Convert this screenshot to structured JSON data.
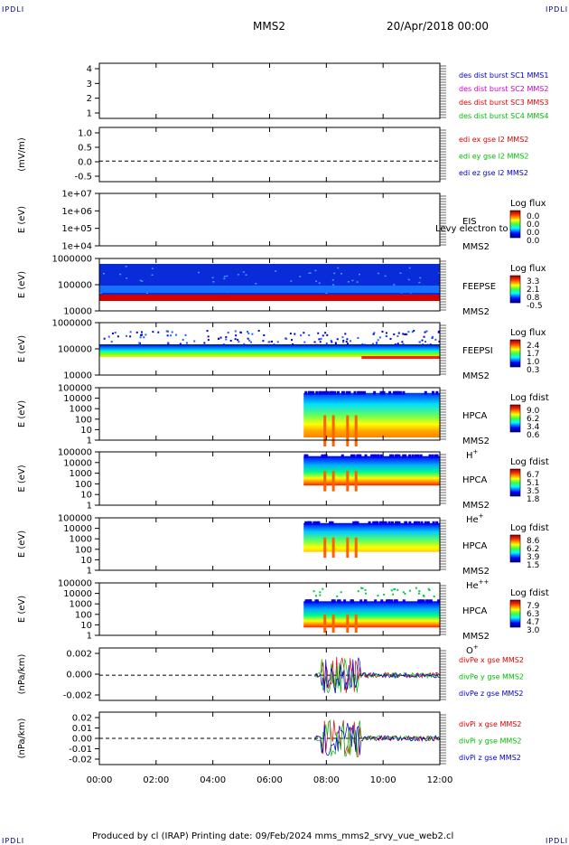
{
  "header": {
    "corner_label": "IPDLI",
    "spacecraft": "MMS2",
    "date_time": "20/Apr/2018 00:00"
  },
  "footer": {
    "text": "Produced by cl (IRAP)   Printing date: 09/Feb/2024   mms_mms2_srvy_vue_web2.cl"
  },
  "colors": {
    "blue": "#0000cc",
    "magenta": "#cc00cc",
    "red": "#dd0000",
    "green": "#00bb00"
  },
  "chart_data": {
    "type": "stacked-panels",
    "x_ticks": [
      "00:00",
      "02:00",
      "04:00",
      "06:00",
      "08:00",
      "10:00",
      "12:00"
    ],
    "xlim_hours": [
      0,
      12
    ],
    "panels": [
      {
        "id": "p1",
        "ylabel": "",
        "yticks": [
          "4",
          "3",
          "2",
          "1"
        ],
        "legend": [
          {
            "text": "des dist burst SC1 MMS1",
            "color": "#0000cc"
          },
          {
            "text": "des dist burst SC2 MMS2",
            "color": "#cc00cc"
          },
          {
            "text": "des dist burst SC3 MMS3",
            "color": "#dd0000"
          },
          {
            "text": "des dist burst SC4 MMS4",
            "color": "#00bb00"
          }
        ]
      },
      {
        "id": "p2",
        "ylabel": "(mV/m)",
        "yticks": [
          "1.0",
          "0.5",
          "0.0",
          "-0.5"
        ],
        "legend": [
          {
            "text": "edi ex gse l2 MMS2",
            "color": "#dd0000"
          },
          {
            "text": "edi ey gse l2 MMS2",
            "color": "#00bb00"
          },
          {
            "text": "edi ez gse l2 MMS2",
            "color": "#0000cc"
          }
        ]
      },
      {
        "id": "p3",
        "ylabel": "E (eV)",
        "yticks": [
          "1e+07",
          "1e+06",
          "1e+05",
          "1e+04"
        ],
        "name": "EIS",
        "sub": "MMS2",
        "extra": "Levy electron to",
        "cbar_title": "Log flux",
        "cbar": [
          "0.0",
          "0.0",
          "0.0",
          "0.0"
        ]
      },
      {
        "id": "p4",
        "ylabel": "E (eV)",
        "yticks": [
          "1000000",
          "100000",
          "10000"
        ],
        "name": "FEEPSE",
        "sub": "MMS2",
        "cbar_title": "Log flux",
        "cbar": [
          "3.3",
          "2.1",
          "0.8",
          "-0.5"
        ]
      },
      {
        "id": "p5",
        "ylabel": "E (eV)",
        "yticks": [
          "1000000",
          "100000",
          "10000"
        ],
        "name": "FEEPSI",
        "sub": "MMS2",
        "cbar_title": "Log flux",
        "cbar": [
          "2.4",
          "1.7",
          "1.0",
          "0.3"
        ]
      },
      {
        "id": "p6",
        "ylabel": "E (eV)",
        "yticks": [
          "100000",
          "10000",
          "1000",
          "100",
          "10",
          "1"
        ],
        "name": "HPCA",
        "sub": "MMS2",
        "species": "H+",
        "cbar_title": "Log fdist",
        "cbar": [
          "9.0",
          "6.2",
          "3.4",
          "0.6"
        ]
      },
      {
        "id": "p7",
        "ylabel": "E (eV)",
        "yticks": [
          "100000",
          "10000",
          "1000",
          "100",
          "10",
          "1"
        ],
        "name": "HPCA",
        "sub": "MMS2",
        "species": "He+",
        "cbar_title": "Log fdist",
        "cbar": [
          "6.7",
          "5.1",
          "3.5",
          "1.8"
        ]
      },
      {
        "id": "p8",
        "ylabel": "E (eV)",
        "yticks": [
          "100000",
          "10000",
          "1000",
          "100",
          "10",
          "1"
        ],
        "name": "HPCA",
        "sub": "MMS2",
        "species": "He++",
        "cbar_title": "Log fdist",
        "cbar": [
          "8.6",
          "6.2",
          "3.9",
          "1.5"
        ]
      },
      {
        "id": "p9",
        "ylabel": "E (eV)",
        "yticks": [
          "100000",
          "10000",
          "1000",
          "100",
          "10",
          "1"
        ],
        "name": "HPCA",
        "sub": "MMS2",
        "species": "O+",
        "cbar_title": "Log fdist",
        "cbar": [
          "7.9",
          "6.3",
          "4.7",
          "3.0"
        ]
      },
      {
        "id": "p10",
        "ylabel": "(nPa/km)",
        "yticks": [
          "0.002",
          "0.000",
          "-0.002"
        ],
        "legend": [
          {
            "text": "divPe x gse MMS2",
            "color": "#dd0000"
          },
          {
            "text": "divPe y gse MMS2",
            "color": "#00bb00"
          },
          {
            "text": "divPe z gse MMS2",
            "color": "#0000cc"
          }
        ]
      },
      {
        "id": "p11",
        "ylabel": "(nPa/km)",
        "yticks": [
          "0.02",
          "0.01",
          "0.00",
          "-0.01",
          "-0.02"
        ],
        "legend": [
          {
            "text": "divPi x gse MMS2",
            "color": "#dd0000"
          },
          {
            "text": "divPi y gse MMS2",
            "color": "#00bb00"
          },
          {
            "text": "divPi z gse MMS2",
            "color": "#0000cc"
          }
        ]
      }
    ]
  }
}
